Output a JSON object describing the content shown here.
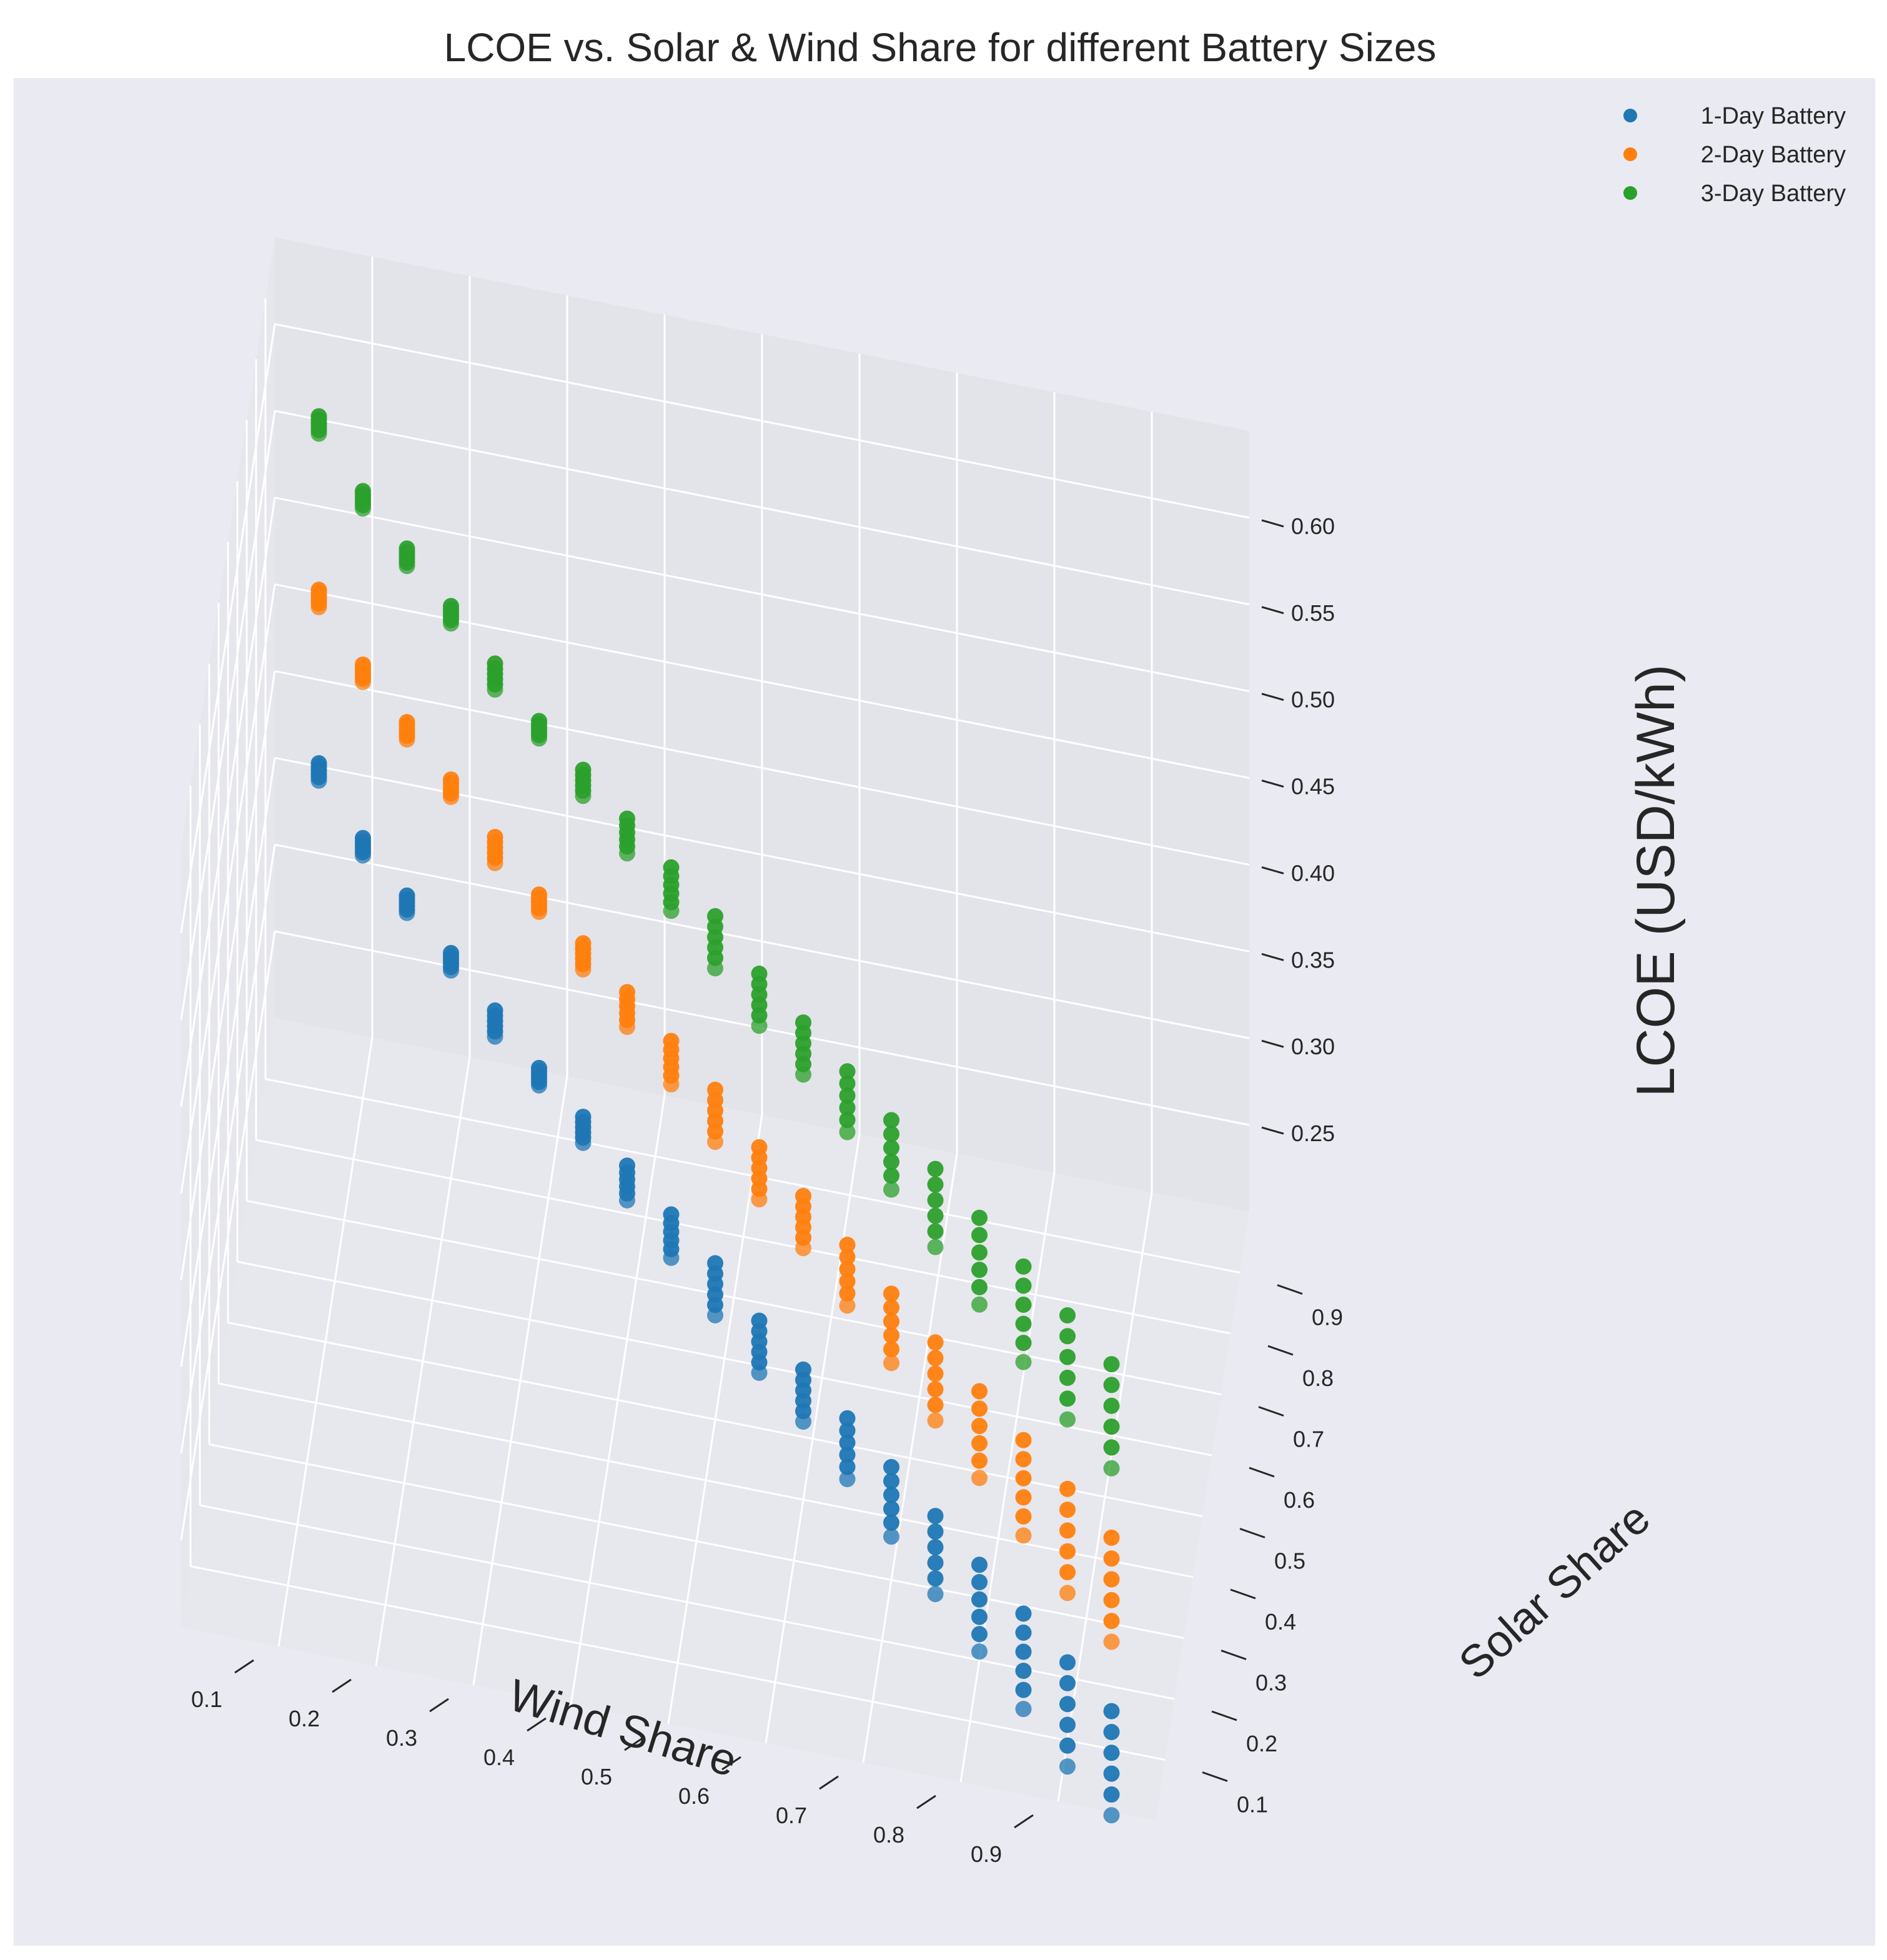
{
  "chart_data": {
    "type": "scatter",
    "projection": "3d",
    "title": "LCOE vs. Solar & Wind Share for different Battery Sizes",
    "xlabel": "Wind Share",
    "ylabel": "Solar Share",
    "zlabel": "LCOE (USD/kWh)",
    "xlim": [
      0.0,
      1.0
    ],
    "ylim": [
      0.0,
      1.0
    ],
    "zlim": [
      0.2,
      0.65
    ],
    "x_ticks": [
      "0.1",
      "0.2",
      "0.3",
      "0.4",
      "0.5",
      "0.6",
      "0.7",
      "0.8",
      "0.9"
    ],
    "y_ticks": [
      "0.1",
      "0.2",
      "0.3",
      "0.4",
      "0.5",
      "0.6",
      "0.7",
      "0.8",
      "0.9"
    ],
    "z_ticks": [
      "0.25",
      "0.30",
      "0.35",
      "0.40",
      "0.45",
      "0.50",
      "0.55",
      "0.60"
    ],
    "grid": true,
    "legend_position": "top-right",
    "series": [
      {
        "name": "1-Day Battery",
        "color": "#1f77b4",
        "wind_share": [
          0.05,
          0.1,
          0.15,
          0.2,
          0.25,
          0.3,
          0.35,
          0.4,
          0.45,
          0.5,
          0.55,
          0.6,
          0.65,
          0.7,
          0.75,
          0.8,
          0.85,
          0.9,
          0.95
        ],
        "solar_share": [
          0.95,
          0.9,
          0.85,
          0.8,
          0.75,
          0.7,
          0.65,
          0.6,
          0.55,
          0.5,
          0.45,
          0.4,
          0.35,
          0.3,
          0.25,
          0.2,
          0.15,
          0.1,
          0.05
        ],
        "lcoe_max": [
          0.37,
          0.35,
          0.34,
          0.33,
          0.32,
          0.31,
          0.305,
          0.3,
          0.295,
          0.29,
          0.28,
          0.275,
          0.27,
          0.265,
          0.26,
          0.255,
          0.25,
          0.245,
          0.24
        ],
        "lcoe_min": [
          0.36,
          0.34,
          0.33,
          0.32,
          0.305,
          0.3,
          0.29,
          0.28,
          0.27,
          0.26,
          0.25,
          0.245,
          0.235,
          0.225,
          0.215,
          0.205,
          0.195,
          0.185,
          0.18
        ]
      },
      {
        "name": "2-Day Battery",
        "color": "#ff7f0e",
        "wind_share": [
          0.05,
          0.1,
          0.15,
          0.2,
          0.25,
          0.3,
          0.35,
          0.4,
          0.45,
          0.5,
          0.55,
          0.6,
          0.65,
          0.7,
          0.75,
          0.8,
          0.85,
          0.9,
          0.95
        ],
        "solar_share": [
          0.95,
          0.9,
          0.85,
          0.8,
          0.75,
          0.7,
          0.65,
          0.6,
          0.55,
          0.5,
          0.45,
          0.4,
          0.35,
          0.3,
          0.25,
          0.2,
          0.15,
          0.1,
          0.05
        ],
        "lcoe_max": [
          0.47,
          0.45,
          0.44,
          0.43,
          0.42,
          0.41,
          0.405,
          0.4,
          0.395,
          0.39,
          0.38,
          0.375,
          0.37,
          0.365,
          0.36,
          0.355,
          0.35,
          0.345,
          0.34
        ],
        "lcoe_min": [
          0.46,
          0.44,
          0.43,
          0.42,
          0.405,
          0.4,
          0.39,
          0.38,
          0.37,
          0.36,
          0.35,
          0.345,
          0.335,
          0.325,
          0.315,
          0.305,
          0.295,
          0.285,
          0.28
        ]
      },
      {
        "name": "3-Day Battery",
        "color": "#2ca02c",
        "wind_share": [
          0.05,
          0.1,
          0.15,
          0.2,
          0.25,
          0.3,
          0.35,
          0.4,
          0.45,
          0.5,
          0.55,
          0.6,
          0.65,
          0.7,
          0.75,
          0.8,
          0.85,
          0.9,
          0.95
        ],
        "solar_share": [
          0.95,
          0.9,
          0.85,
          0.8,
          0.75,
          0.7,
          0.65,
          0.6,
          0.55,
          0.5,
          0.45,
          0.4,
          0.35,
          0.3,
          0.25,
          0.2,
          0.15,
          0.1,
          0.05
        ],
        "lcoe_max": [
          0.57,
          0.55,
          0.54,
          0.53,
          0.52,
          0.51,
          0.505,
          0.5,
          0.495,
          0.49,
          0.48,
          0.475,
          0.47,
          0.465,
          0.46,
          0.455,
          0.45,
          0.445,
          0.44
        ],
        "lcoe_min": [
          0.56,
          0.54,
          0.53,
          0.52,
          0.505,
          0.5,
          0.49,
          0.48,
          0.47,
          0.46,
          0.45,
          0.445,
          0.435,
          0.425,
          0.415,
          0.405,
          0.395,
          0.385,
          0.38
        ]
      }
    ]
  }
}
